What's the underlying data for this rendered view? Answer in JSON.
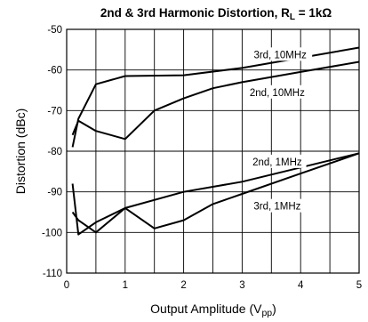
{
  "chart_data": {
    "type": "line",
    "title_main": "2nd & 3rd Harmonic Distortion, R",
    "title_sub": "L",
    "title_tail": " = 1kΩ",
    "xlabel_main": "Output Amplitude (V",
    "xlabel_sub": "pp",
    "xlabel_tail": ")",
    "ylabel": "Distortion (dBc)",
    "xlim": [
      0,
      5
    ],
    "ylim": [
      -110,
      -50
    ],
    "x_ticks": [
      0,
      1,
      2,
      3,
      4,
      5
    ],
    "x_tick_labels": [
      "0",
      "1",
      "2",
      "3",
      "4",
      "5"
    ],
    "x_grid": [
      0,
      0.5,
      1,
      1.5,
      2,
      2.5,
      3,
      3.5,
      4,
      4.5,
      5
    ],
    "y_ticks": [
      -50,
      -60,
      -70,
      -80,
      -90,
      -100,
      -110
    ],
    "y_tick_labels": [
      "-50",
      "-60",
      "-70",
      "-80",
      "-90",
      "-100",
      "-110"
    ],
    "grid": true,
    "series": [
      {
        "name": "3rd, 10MHz",
        "x": [
          0.1,
          0.2,
          0.5,
          1.0,
          2.0,
          3.0,
          4.0,
          5.0
        ],
        "y": [
          -79,
          -72,
          -63.5,
          -61.5,
          -61.3,
          -59.5,
          -57,
          -54.5
        ]
      },
      {
        "name": "2nd, 10MHz",
        "x": [
          0.1,
          0.2,
          0.5,
          1.0,
          1.5,
          2.0,
          2.5,
          3.0,
          4.0,
          5.0
        ],
        "y": [
          -76,
          -72.5,
          -75,
          -77,
          -70,
          -67,
          -64.5,
          -63,
          -60.5,
          -58
        ]
      },
      {
        "name": "2nd, 1MHz",
        "x": [
          0.1,
          0.2,
          0.5,
          1.0,
          2.0,
          3.0,
          4.0,
          5.0
        ],
        "y": [
          -88,
          -100.5,
          -97.5,
          -94,
          -90,
          -87.5,
          -84,
          -80.5
        ]
      },
      {
        "name": "3rd, 1MHz",
        "x": [
          0.1,
          0.2,
          0.5,
          1.0,
          1.5,
          2.0,
          2.5,
          3.0,
          4.0,
          5.0
        ],
        "y": [
          -95,
          -97,
          -100,
          -94,
          -99,
          -97,
          -93,
          -90.5,
          -85.5,
          -80.5
        ]
      }
    ],
    "annotations": [
      {
        "text": "3rd, 10MHz",
        "x": 3.65,
        "y": -56.2
      },
      {
        "text": "2nd, 10MHz",
        "x": 3.6,
        "y": -65.5
      },
      {
        "text": "2nd, 1MHz",
        "x": 3.6,
        "y": -82.6
      },
      {
        "text": "3rd, 1MHz",
        "x": 3.6,
        "y": -93.5
      }
    ]
  }
}
